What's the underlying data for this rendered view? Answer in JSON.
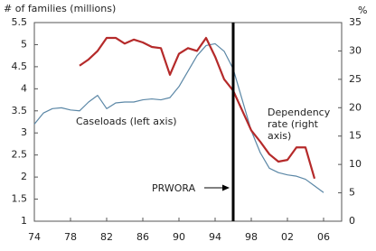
{
  "chart_data": {
    "type": "line",
    "y_label": "# of families (millions)",
    "y2_label": "%",
    "xlim": [
      1974,
      2008
    ],
    "xticks": [
      {
        "value": 1974,
        "label": "74"
      },
      {
        "value": 1978,
        "label": "78"
      },
      {
        "value": 1982,
        "label": "82"
      },
      {
        "value": 1986,
        "label": "86"
      },
      {
        "value": 1990,
        "label": "90"
      },
      {
        "value": 1994,
        "label": "94"
      },
      {
        "value": 1998,
        "label": "98"
      },
      {
        "value": 2002,
        "label": "02"
      },
      {
        "value": 2006,
        "label": "06"
      }
    ],
    "ylim": [
      1,
      5.5
    ],
    "yticks": [
      1,
      1.5,
      2,
      2.5,
      3,
      3.5,
      4,
      4.5,
      5,
      5.5
    ],
    "y2lim": [
      0,
      35
    ],
    "y2ticks": [
      0,
      5,
      10,
      15,
      20,
      25,
      30,
      35
    ],
    "grid": false,
    "series": [
      {
        "name": "Caseloads (left axis)",
        "color": "#5b87a6",
        "axis": "y",
        "x": [
          1974,
          1975,
          1976,
          1977,
          1978,
          1979,
          1980,
          1981,
          1982,
          1983,
          1984,
          1985,
          1986,
          1987,
          1988,
          1989,
          1990,
          1991,
          1992,
          1993,
          1994,
          1995,
          1996,
          1997,
          1998,
          1999,
          2000,
          2001,
          2002,
          2003,
          2004,
          2005,
          2006
        ],
        "values": [
          3.2,
          3.45,
          3.55,
          3.57,
          3.52,
          3.5,
          3.7,
          3.85,
          3.55,
          3.68,
          3.7,
          3.7,
          3.75,
          3.77,
          3.75,
          3.8,
          4.05,
          4.4,
          4.75,
          4.98,
          5.02,
          4.85,
          4.45,
          3.75,
          3.05,
          2.55,
          2.2,
          2.1,
          2.05,
          2.02,
          1.95,
          1.8,
          1.65
        ]
      },
      {
        "name": "Dependency rate (right axis)",
        "color": "#b52a2a",
        "axis": "y2",
        "x": [
          1979,
          1980,
          1981,
          1982,
          1983,
          1984,
          1985,
          1986,
          1987,
          1988,
          1989,
          1990,
          1991,
          1992,
          1993,
          1994,
          1995,
          1996,
          1997,
          1998,
          1999,
          2000,
          2001,
          2002,
          2003,
          2004,
          2005
        ],
        "values": [
          27.4,
          28.5,
          30,
          32.3,
          32.3,
          31.3,
          32,
          31.5,
          30.7,
          30.5,
          25.8,
          29.5,
          30.5,
          30,
          32.3,
          29,
          25,
          23,
          19.5,
          16,
          14,
          11.8,
          10.5,
          10.8,
          13,
          13,
          7.5
        ]
      }
    ],
    "events": [
      {
        "x": 1996,
        "label": "PRWORA"
      }
    ]
  }
}
